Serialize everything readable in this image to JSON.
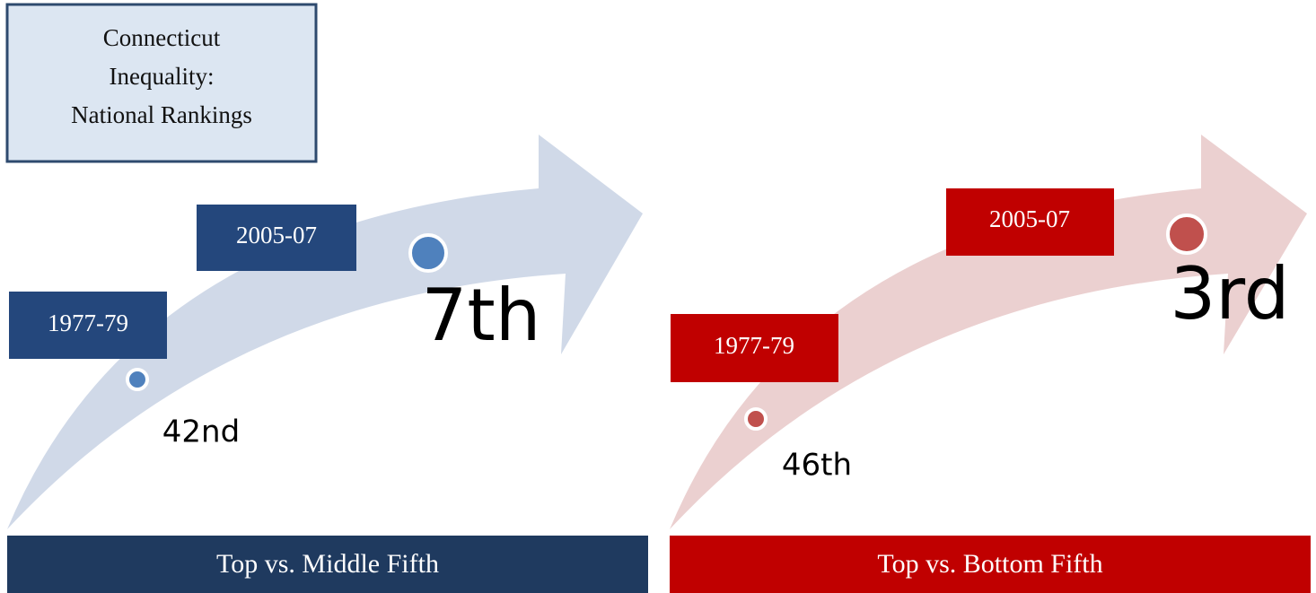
{
  "title": {
    "lines": [
      "Connecticut",
      "Inequality:",
      "National Rankings"
    ]
  },
  "panels": [
    {
      "label": "Top vs. Middle Fifth",
      "periods": [
        {
          "period": "1977-79",
          "rank": "42nd"
        },
        {
          "period": "2005-07",
          "rank": "7th"
        }
      ]
    },
    {
      "label": "Top vs. Bottom Fifth",
      "periods": [
        {
          "period": "1977-79",
          "rank": "46th"
        },
        {
          "period": "2005-07",
          "rank": "3rd"
        }
      ]
    }
  ]
}
